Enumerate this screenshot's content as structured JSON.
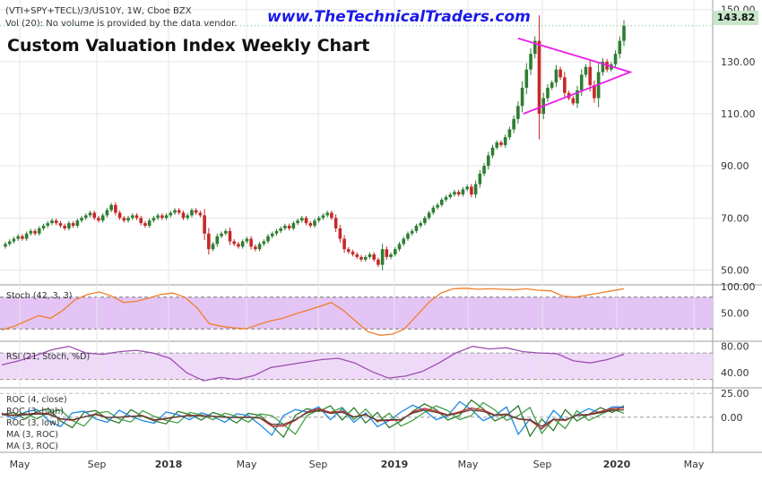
{
  "header": {
    "symbol_line": "(VTI+SPY+TECL)/3/US10Y, 1W, Cboe BZX",
    "volume_note": "Vol (20): No volume is provided by the data vendor.",
    "brand": "www.TheTechnicalTraders.com",
    "title": "Custom Valuation Index Weekly Chart"
  },
  "price_badge": "143.82",
  "panels": {
    "stoch_label": "Stoch (42, 3, 3)",
    "rsi_label": "RSI (21, Stoch, %D)",
    "roc_labels": [
      "ROC (4, close)",
      "ROC (3, high)",
      "ROC (3, low)",
      "MA (3, ROC)",
      "MA (3, ROC)"
    ]
  },
  "colors": {
    "up": "#2e7d32",
    "down": "#c62828",
    "triangle": "#e91ee6",
    "stoch_line": "#f07f2a",
    "stoch_band": "#e3c4f5",
    "rsi_line": "#9c4fb0",
    "rsi_band": "#eedaf8",
    "brand": "#1a1ae6",
    "last_price_bg": "#c8e6c9"
  },
  "chart_data": [
    {
      "type": "candlestick",
      "title": "Custom Valuation Index Weekly Chart",
      "timeframe": "1W",
      "y_ticks": [
        "50.00",
        "70.00",
        "90.00",
        "110.00",
        "130.00",
        "150.00"
      ],
      "ylim": [
        45,
        153
      ],
      "x_ticks": [
        "May",
        "Sep",
        "2018",
        "May",
        "Sep",
        "2019",
        "May",
        "Sep",
        "2020",
        "May"
      ],
      "last_price": 143.82,
      "closes": [
        60,
        61,
        62,
        63,
        62,
        64,
        65,
        64,
        66,
        67,
        68,
        69,
        68,
        67,
        66,
        68,
        67,
        69,
        70,
        71,
        72,
        70,
        69,
        71,
        73,
        75,
        72,
        70,
        69,
        70,
        71,
        70,
        68,
        67,
        69,
        70,
        71,
        70,
        71,
        72,
        73,
        72,
        70,
        71,
        73,
        72,
        71,
        64,
        58,
        60,
        63,
        64,
        65,
        61,
        60,
        59,
        61,
        62,
        59,
        58,
        60,
        61,
        63,
        64,
        65,
        66,
        67,
        66,
        68,
        69,
        70,
        68,
        67,
        69,
        70,
        71,
        72,
        70,
        66,
        62,
        58,
        57,
        56,
        55,
        54,
        55,
        56,
        54,
        52,
        58,
        55,
        56,
        58,
        60,
        62,
        64,
        65,
        67,
        68,
        70,
        72,
        74,
        75,
        77,
        78,
        79,
        80,
        79,
        81,
        82,
        79,
        83,
        87,
        90,
        94,
        97,
        99,
        98,
        101,
        104,
        108,
        113,
        120,
        127,
        133,
        138,
        110,
        116,
        120,
        122,
        127,
        124,
        118,
        116,
        114,
        119,
        125,
        128,
        121,
        116,
        126,
        130,
        127,
        129,
        133,
        138,
        143.82
      ],
      "triangle": {
        "apex_top": 139,
        "apex_bottom": 110,
        "apex_right": 126
      },
      "drawing": "symmetric triangle"
    },
    {
      "type": "line",
      "name": "Stoch (42, 3, 3)",
      "y_ticks": [
        "50.00",
        "100.00"
      ],
      "ylim": [
        0,
        100
      ],
      "band": [
        20,
        80
      ],
      "values": [
        18,
        25,
        35,
        45,
        40,
        55,
        75,
        85,
        90,
        82,
        70,
        72,
        78,
        85,
        88,
        80,
        60,
        30,
        25,
        22,
        20,
        28,
        35,
        40,
        48,
        55,
        62,
        70,
        55,
        35,
        15,
        8,
        10,
        20,
        45,
        70,
        88,
        96,
        97,
        95,
        96,
        95,
        94,
        96,
        93,
        92,
        82,
        80,
        84,
        88,
        92,
        96
      ]
    },
    {
      "type": "line",
      "name": "RSI (21, Stoch, %D)",
      "y_ticks": [
        "40.00",
        "80.00"
      ],
      "ylim": [
        20,
        85
      ],
      "band": [
        30,
        70
      ],
      "values": [
        52,
        58,
        66,
        75,
        80,
        70,
        68,
        72,
        74,
        70,
        62,
        40,
        28,
        33,
        30,
        36,
        48,
        52,
        56,
        60,
        62,
        55,
        42,
        32,
        35,
        42,
        55,
        70,
        80,
        76,
        78,
        72,
        70,
        69,
        58,
        55,
        60,
        68
      ]
    },
    {
      "type": "line",
      "name": "ROC (4, close)",
      "y_ticks": [
        "25.00",
        "0.00"
      ],
      "ylim": [
        -35,
        28
      ],
      "values": [
        3,
        5,
        -2,
        6,
        9,
        -4,
        -11,
        5,
        7,
        -2,
        -6,
        8,
        1,
        -4,
        -7,
        6,
        3,
        -3,
        5,
        1,
        -6,
        4,
        2,
        -9,
        -21,
        2,
        9,
        6,
        12,
        -3,
        10,
        -6,
        5,
        -11,
        -4,
        6,
        14,
        8,
        -3,
        2,
        18,
        9,
        -4,
        2,
        12,
        -20,
        -2,
        -14,
        8,
        -4,
        3,
        10,
        5,
        12
      ]
    }
  ]
}
